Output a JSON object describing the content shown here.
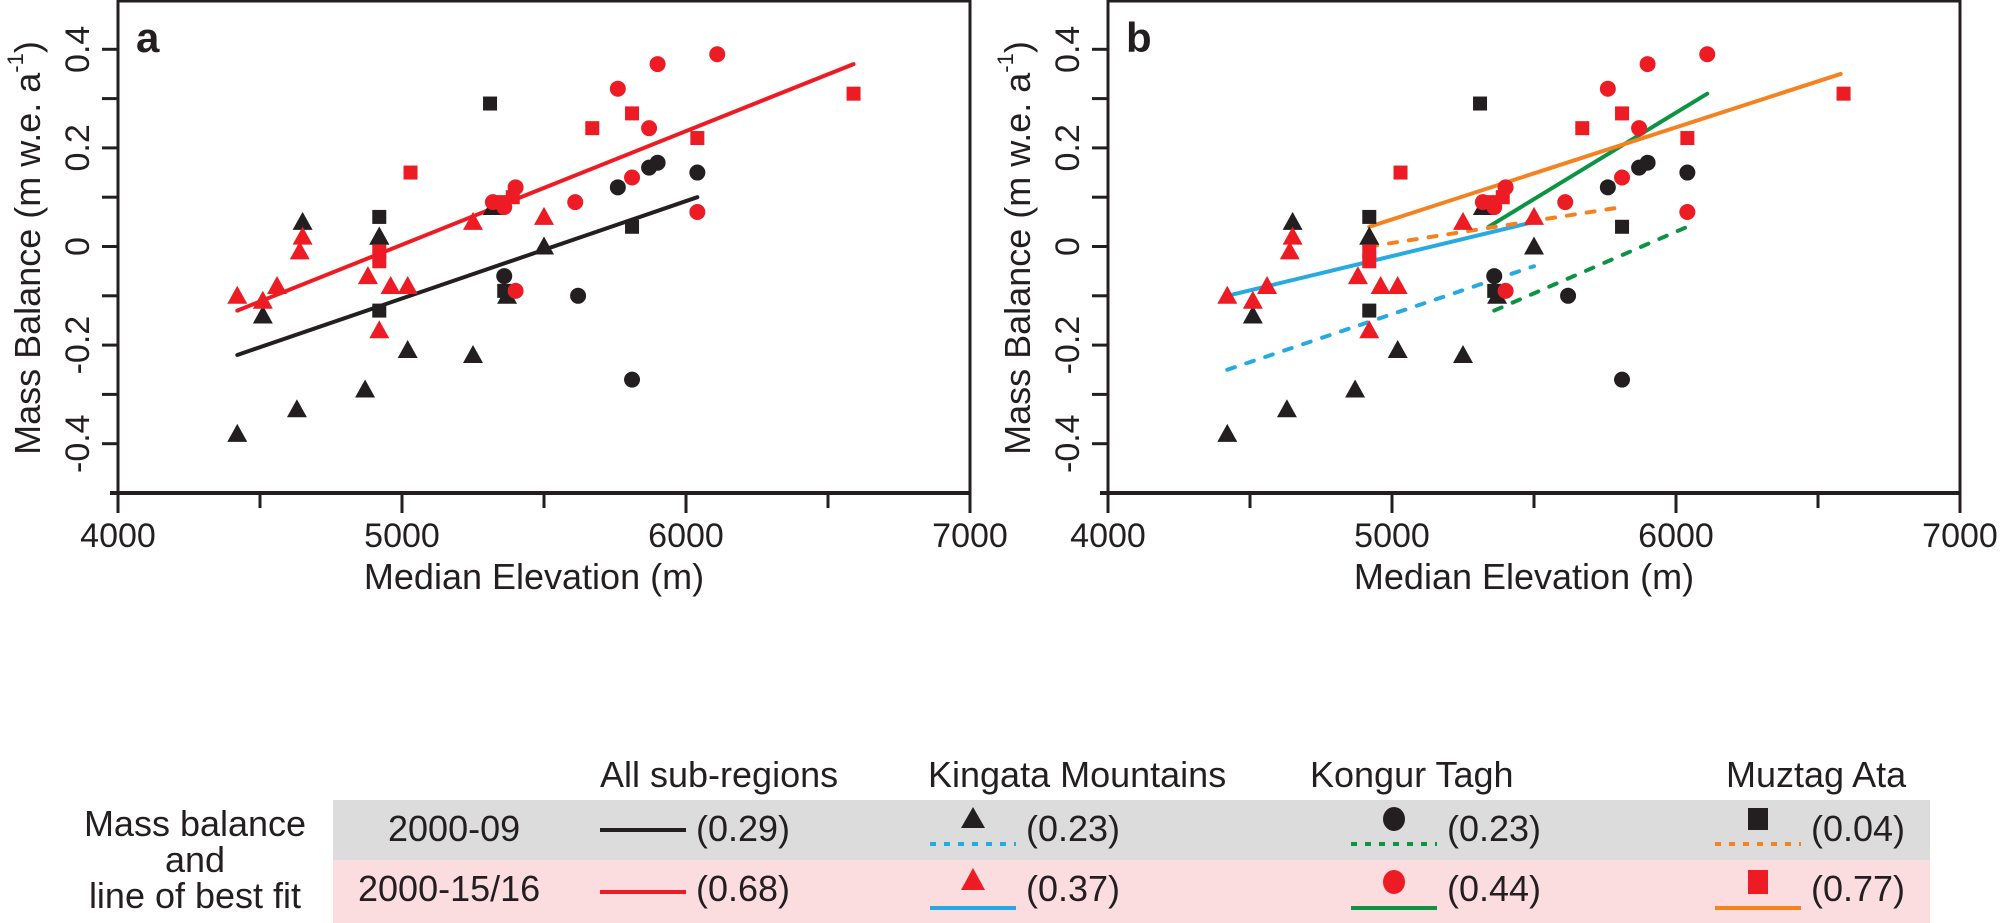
{
  "chart_data": [
    {
      "type": "scatter",
      "panel": "a",
      "panel_label": "a",
      "xlabel": "Median Elevation (m)",
      "ylabel_main": "Mass Balance (m w.e. a",
      "ylabel_sup": "-1",
      "ylabel_close": ")",
      "xlim": [
        4000,
        7000
      ],
      "ylim": [
        -0.5,
        0.5
      ],
      "xticks": [
        4000,
        5000,
        6000,
        7000
      ],
      "xtick_labels": [
        "4000",
        "5000",
        "6000",
        "7000"
      ],
      "xminor_ticks": [
        4500,
        5500,
        6500
      ],
      "yticks": [
        -0.4,
        -0.2,
        0,
        0.2,
        0.4
      ],
      "ytick_labels": [
        "-0.4",
        "-0.2",
        "0",
        "0.2",
        "0.4"
      ],
      "yminor_ticks": [
        -0.3,
        -0.1,
        0.1,
        0.3
      ],
      "grid": false,
      "fit_lines": [
        {
          "name": "All sub-regions 2000-09",
          "color": "#231f20",
          "style": "solid",
          "r2": "0.29",
          "x": [
            4420,
            6040
          ],
          "y": [
            -0.22,
            0.1
          ]
        },
        {
          "name": "All sub-regions 2000-15/16",
          "color": "#ed1c24",
          "style": "solid",
          "r2": "0.68",
          "x": [
            4420,
            6590
          ],
          "y": [
            -0.13,
            0.37
          ]
        }
      ]
    },
    {
      "type": "scatter",
      "panel": "b",
      "panel_label": "b",
      "xlabel": "Median Elevation (m)",
      "ylabel_main": "Mass Balance (m w.e. a",
      "ylabel_sup": "-1",
      "ylabel_close": ")",
      "xlim": [
        4000,
        7000
      ],
      "ylim": [
        -0.5,
        0.5
      ],
      "xticks": [
        4000,
        5000,
        6000,
        7000
      ],
      "xtick_labels": [
        "4000",
        "5000",
        "6000",
        "7000"
      ],
      "xminor_ticks": [
        4500,
        5500,
        6500
      ],
      "yticks": [
        -0.4,
        -0.2,
        0,
        0.2,
        0.4
      ],
      "ytick_labels": [
        "-0.4",
        "-0.2",
        "0",
        "0.2",
        "0.4"
      ],
      "yminor_ticks": [
        -0.3,
        -0.1,
        0.1,
        0.3
      ],
      "grid": false,
      "fit_lines": [
        {
          "name": "Kingata Mountains 2000-09",
          "color": "#27a9e1",
          "style": "dashed",
          "r2": "0.23",
          "x": [
            4420,
            5500
          ],
          "y": [
            -0.25,
            -0.04
          ]
        },
        {
          "name": "Kingata Mountains 2000-15/16",
          "color": "#27a9e1",
          "style": "solid",
          "r2": "0.37",
          "x": [
            4420,
            5500
          ],
          "y": [
            -0.1,
            0.05
          ]
        },
        {
          "name": "Kongur Tagh 2000-09",
          "color": "#0c9444",
          "style": "dashed",
          "r2": "0.23",
          "x": [
            5360,
            6040
          ],
          "y": [
            -0.13,
            0.04
          ]
        },
        {
          "name": "Kongur Tagh 2000-15/16",
          "color": "#0c9444",
          "style": "solid",
          "r2": "0.44",
          "x": [
            5340,
            6110
          ],
          "y": [
            0.04,
            0.31
          ]
        },
        {
          "name": "Muztag Ata 2000-09",
          "color": "#f58220",
          "style": "dashed",
          "r2": "0.04",
          "x": [
            4920,
            5810
          ],
          "y": [
            0.0,
            0.08
          ]
        },
        {
          "name": "Muztag Ata 2000-15/16",
          "color": "#f58220",
          "style": "solid",
          "r2": "0.77",
          "x": [
            4920,
            6580
          ],
          "y": [
            0.04,
            0.35
          ]
        }
      ]
    }
  ],
  "points": {
    "description": "Same points plotted in both panels",
    "kingata_2000_09": {
      "marker": "triangle",
      "color": "#231f20",
      "x": [
        4420,
        4510,
        4630,
        4650,
        4870,
        4920,
        4920,
        5020,
        5250,
        5320,
        5370,
        5500
      ],
      "y": [
        -0.38,
        -0.14,
        -0.33,
        0.05,
        -0.29,
        0.02,
        0.02,
        -0.21,
        -0.22,
        0.08,
        -0.1,
        0.0
      ]
    },
    "kingata_2000_15": {
      "marker": "triangle",
      "color": "#ed1c24",
      "x": [
        4420,
        4510,
        4560,
        4640,
        4650,
        4880,
        4920,
        4960,
        5020,
        5250,
        5500
      ],
      "y": [
        -0.1,
        -0.11,
        -0.08,
        -0.01,
        0.02,
        -0.06,
        -0.17,
        -0.08,
        -0.08,
        0.05,
        0.06
      ]
    },
    "kongur_2000_09": {
      "marker": "circle",
      "color": "#231f20",
      "x": [
        5360,
        5620,
        5760,
        5810,
        5870,
        5900,
        6040
      ],
      "y": [
        -0.06,
        -0.1,
        0.12,
        -0.27,
        0.16,
        0.17,
        0.15
      ]
    },
    "kongur_2000_15": {
      "marker": "circle",
      "color": "#ed1c24",
      "x": [
        5320,
        5360,
        5400,
        5400,
        5610,
        5760,
        5810,
        5870,
        5900,
        6040,
        6110
      ],
      "y": [
        0.09,
        0.08,
        0.12,
        -0.09,
        0.09,
        0.32,
        0.14,
        0.24,
        0.37,
        0.07,
        0.39
      ]
    },
    "muztag_2000_09": {
      "marker": "square",
      "color": "#231f20",
      "x": [
        4920,
        4920,
        5310,
        5360,
        5810
      ],
      "y": [
        0.06,
        -0.13,
        0.29,
        -0.09,
        0.04
      ]
    },
    "muztag_2000_15": {
      "marker": "square",
      "color": "#ed1c24",
      "x": [
        4920,
        4920,
        5030,
        5350,
        5390,
        5670,
        5810,
        6040,
        6590
      ],
      "y": [
        -0.01,
        -0.03,
        0.15,
        0.09,
        0.1,
        0.24,
        0.27,
        0.22,
        0.31
      ]
    }
  },
  "legend": {
    "side_label_lines": [
      "Mass balance",
      "and",
      "line of best fit"
    ],
    "columns": [
      "All sub-regions",
      "Kingata Mountains",
      "Kongur Tagh",
      "Muztag Ata"
    ],
    "rows": [
      {
        "period": "2000-09",
        "bg": "#dcdcdc",
        "values": [
          "(0.29)",
          "(0.23)",
          "(0.23)",
          "(0.04)"
        ]
      },
      {
        "period": "2000-15/16",
        "bg": "#fbdde0",
        "values": [
          "(0.68)",
          "(0.37)",
          "(0.44)",
          "(0.77)"
        ]
      }
    ]
  }
}
